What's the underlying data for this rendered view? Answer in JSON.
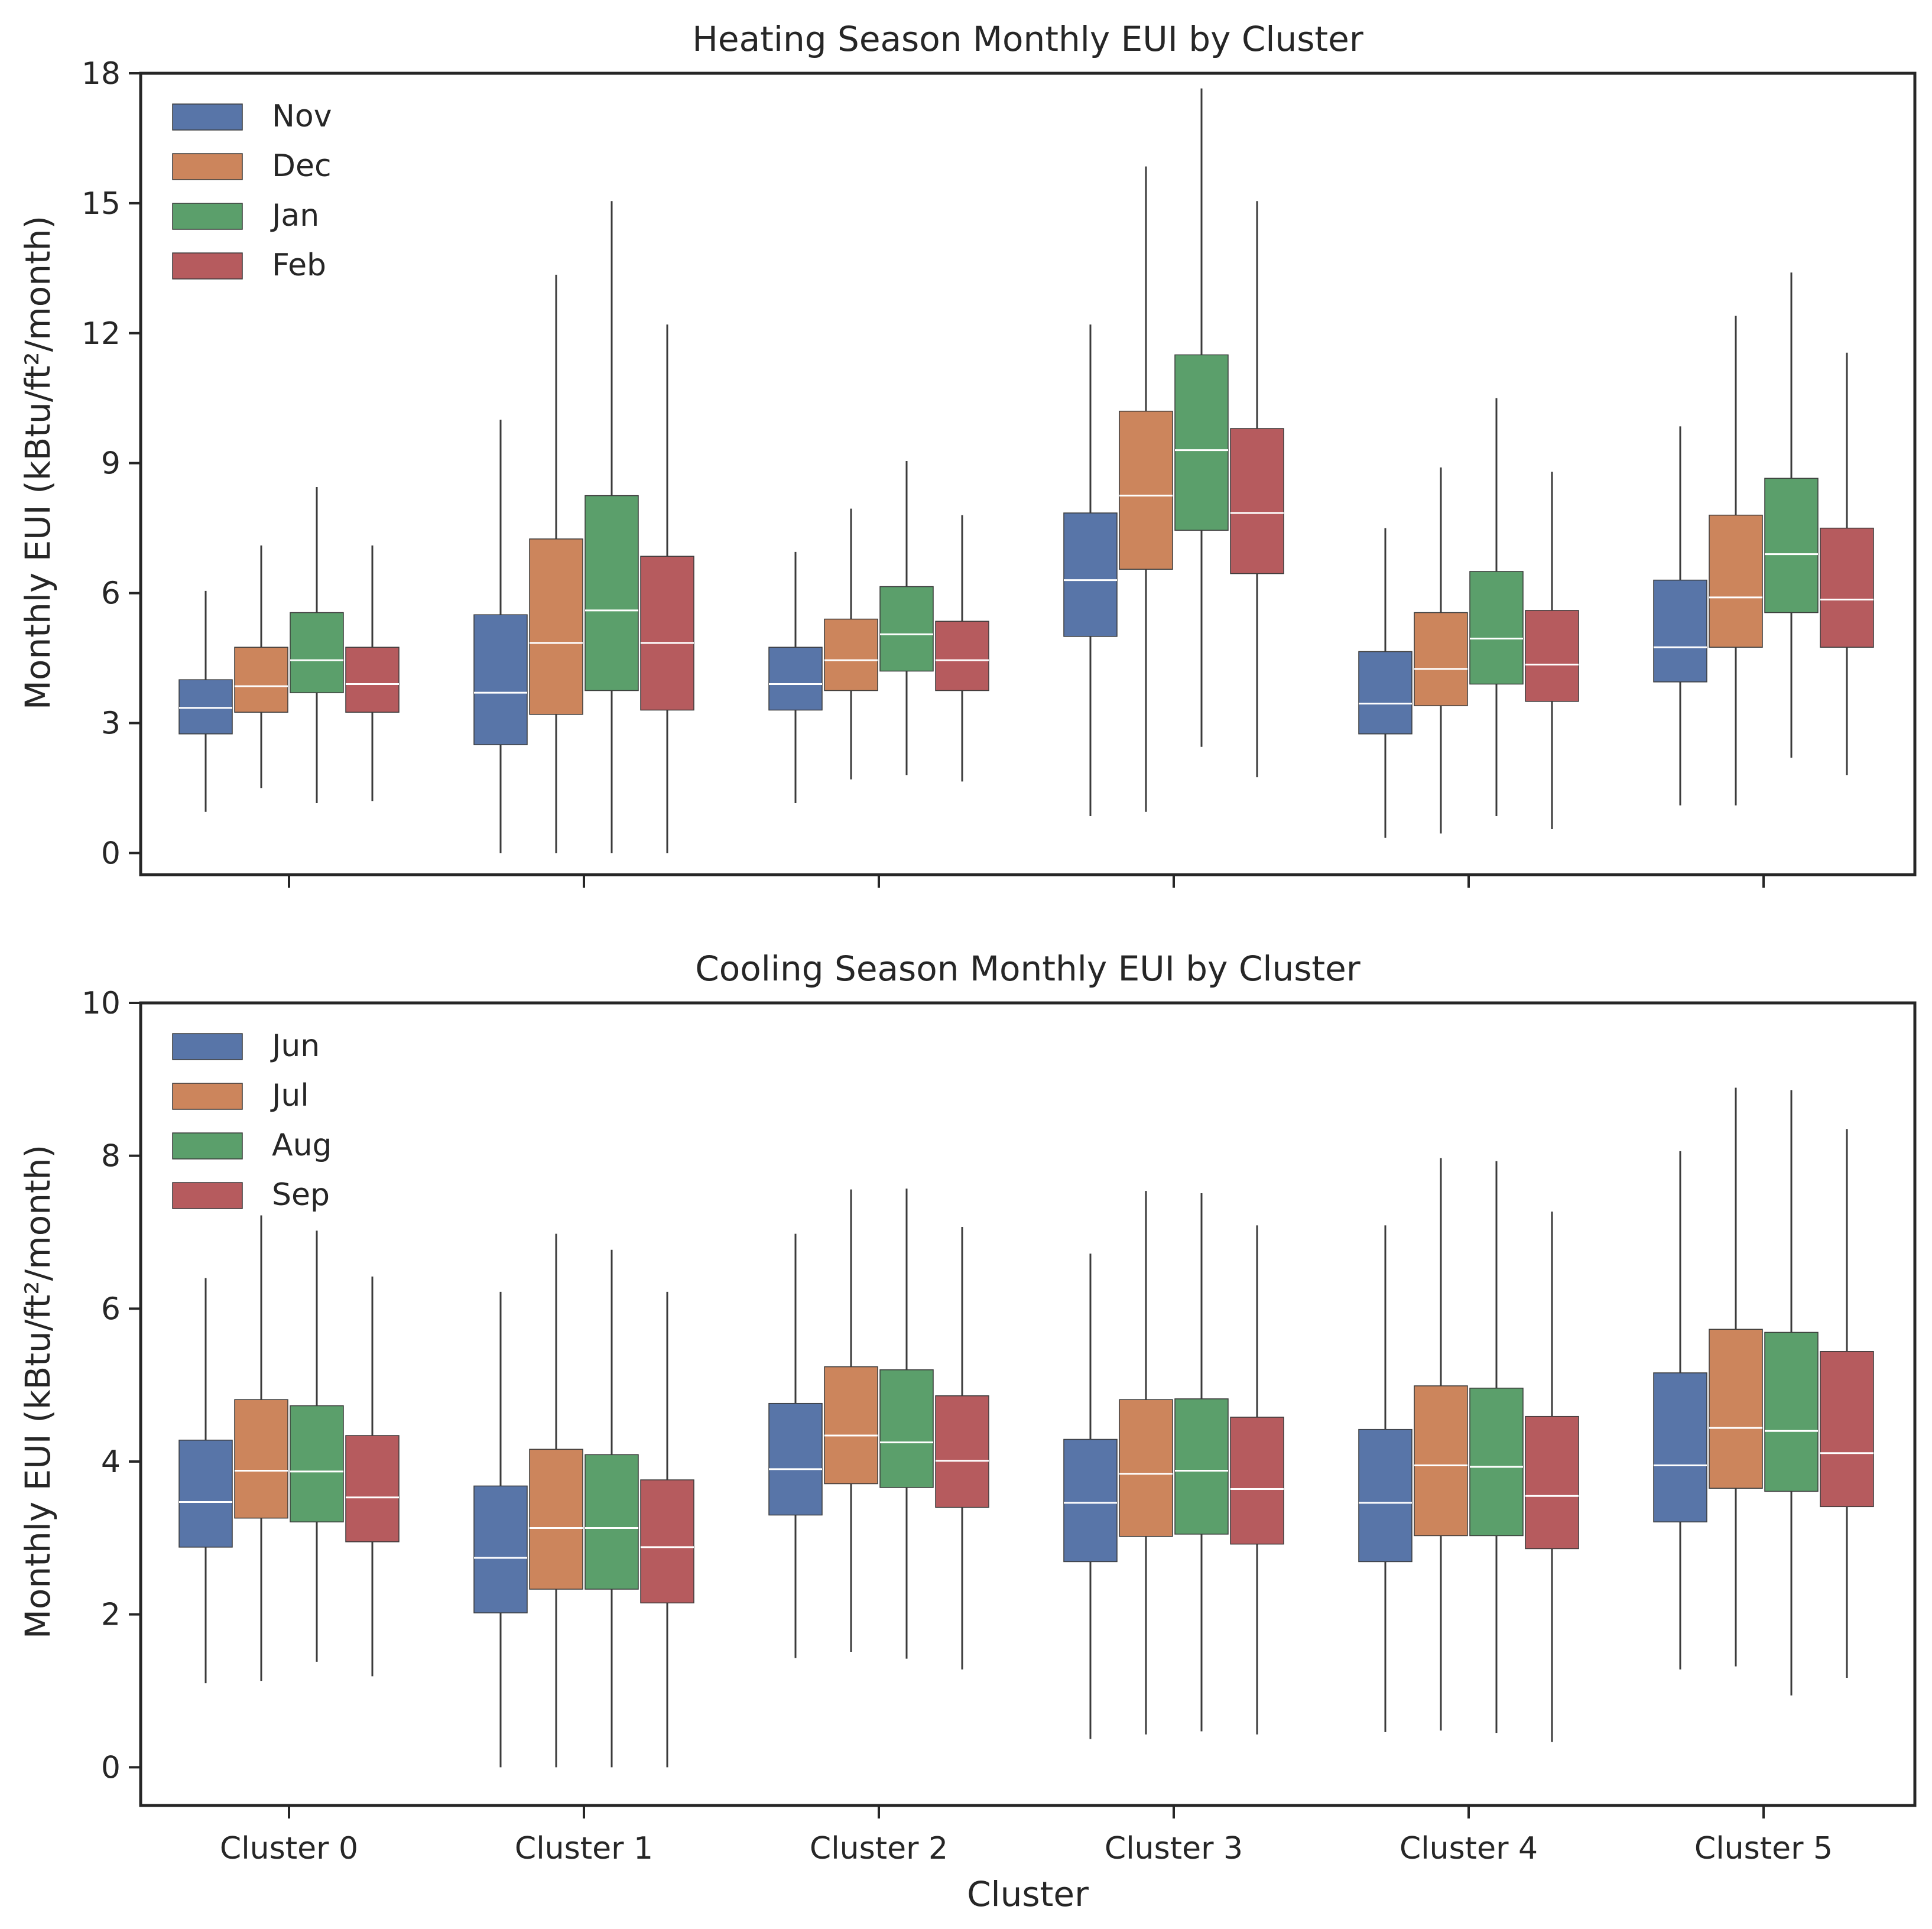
{
  "figure": {
    "shared_xlabel": "Cluster",
    "colors": {
      "c1": "#5875a8",
      "c2": "#cc855c",
      "c3": "#5b9f6b",
      "c4": "#b65b5e",
      "median": "#ffffff",
      "whisker": "#3b3b3b",
      "frame": "#262626"
    }
  },
  "chart_data": [
    {
      "type": "boxplot",
      "title": "Heating Season Monthly EUI by Cluster",
      "xlabel": "",
      "ylabel": "Monthly EUI (kBtu/ft²/month)",
      "ylim": [
        -0.5,
        18
      ],
      "yticks": [
        0,
        3,
        6,
        9,
        12,
        15,
        18
      ],
      "show_xtick_labels": false,
      "legend_loc": "upper left",
      "categories": [
        "Cluster 0",
        "Cluster 1",
        "Cluster 2",
        "Cluster 3",
        "Cluster 4",
        "Cluster 5"
      ],
      "series": [
        {
          "name": "Nov",
          "color": "#5875a8",
          "boxes": [
            {
              "whislo": 0.95,
              "q1": 2.75,
              "med": 3.35,
              "q3": 4.0,
              "whishi": 6.05
            },
            {
              "whislo": 0.0,
              "q1": 2.5,
              "med": 3.7,
              "q3": 5.5,
              "whishi": 10.0
            },
            {
              "whislo": 1.15,
              "q1": 3.3,
              "med": 3.9,
              "q3": 4.75,
              "whishi": 6.95
            },
            {
              "whislo": 0.85,
              "q1": 5.0,
              "med": 6.3,
              "q3": 7.85,
              "whishi": 12.2
            },
            {
              "whislo": 0.35,
              "q1": 2.75,
              "med": 3.45,
              "q3": 4.65,
              "whishi": 7.5
            },
            {
              "whislo": 1.1,
              "q1": 3.95,
              "med": 4.75,
              "q3": 6.3,
              "whishi": 9.85
            }
          ]
        },
        {
          "name": "Dec",
          "color": "#cc855c",
          "boxes": [
            {
              "whislo": 1.5,
              "q1": 3.25,
              "med": 3.85,
              "q3": 4.75,
              "whishi": 7.1
            },
            {
              "whislo": 0.0,
              "q1": 3.2,
              "med": 4.85,
              "q3": 7.25,
              "whishi": 13.35
            },
            {
              "whislo": 1.7,
              "q1": 3.75,
              "med": 4.45,
              "q3": 5.4,
              "whishi": 7.95
            },
            {
              "whislo": 0.95,
              "q1": 6.55,
              "med": 8.25,
              "q3": 10.2,
              "whishi": 15.85
            },
            {
              "whislo": 0.45,
              "q1": 3.4,
              "med": 4.25,
              "q3": 5.55,
              "whishi": 8.9
            },
            {
              "whislo": 1.1,
              "q1": 4.75,
              "med": 5.9,
              "q3": 7.8,
              "whishi": 12.4
            }
          ]
        },
        {
          "name": "Jan",
          "color": "#5b9f6b",
          "boxes": [
            {
              "whislo": 1.15,
              "q1": 3.7,
              "med": 4.45,
              "q3": 5.55,
              "whishi": 8.45
            },
            {
              "whislo": 0.0,
              "q1": 3.75,
              "med": 5.6,
              "q3": 8.25,
              "whishi": 15.05
            },
            {
              "whislo": 1.8,
              "q1": 4.2,
              "med": 5.05,
              "q3": 6.15,
              "whishi": 9.05
            },
            {
              "whislo": 2.45,
              "q1": 7.45,
              "med": 9.3,
              "q3": 11.5,
              "whishi": 17.65
            },
            {
              "whislo": 0.85,
              "q1": 3.9,
              "med": 4.95,
              "q3": 6.5,
              "whishi": 10.5
            },
            {
              "whislo": 2.2,
              "q1": 5.55,
              "med": 6.9,
              "q3": 8.65,
              "whishi": 13.4
            }
          ]
        },
        {
          "name": "Feb",
          "color": "#b65b5e",
          "boxes": [
            {
              "whislo": 1.2,
              "q1": 3.25,
              "med": 3.9,
              "q3": 4.75,
              "whishi": 7.1
            },
            {
              "whislo": 0.0,
              "q1": 3.3,
              "med": 4.85,
              "q3": 6.85,
              "whishi": 12.2
            },
            {
              "whislo": 1.65,
              "q1": 3.75,
              "med": 4.45,
              "q3": 5.35,
              "whishi": 7.8
            },
            {
              "whislo": 1.75,
              "q1": 6.45,
              "med": 7.85,
              "q3": 9.8,
              "whishi": 15.05
            },
            {
              "whislo": 0.55,
              "q1": 3.5,
              "med": 4.35,
              "q3": 5.6,
              "whishi": 8.8
            },
            {
              "whislo": 1.8,
              "q1": 4.75,
              "med": 5.85,
              "q3": 7.5,
              "whishi": 11.55
            }
          ]
        }
      ]
    },
    {
      "type": "boxplot",
      "title": "Cooling Season Monthly EUI by Cluster",
      "xlabel": "Cluster",
      "ylabel": "Monthly EUI (kBtu/ft²/month)",
      "ylim": [
        -0.5,
        10
      ],
      "yticks": [
        0,
        2,
        4,
        6,
        8,
        10
      ],
      "show_xtick_labels": true,
      "legend_loc": "upper left",
      "categories": [
        "Cluster 0",
        "Cluster 1",
        "Cluster 2",
        "Cluster 3",
        "Cluster 4",
        "Cluster 5"
      ],
      "series": [
        {
          "name": "Jun",
          "color": "#5875a8",
          "boxes": [
            {
              "whislo": 1.1,
              "q1": 2.88,
              "med": 3.47,
              "q3": 4.28,
              "whishi": 6.4
            },
            {
              "whislo": 0.0,
              "q1": 2.02,
              "med": 2.74,
              "q3": 3.68,
              "whishi": 6.22
            },
            {
              "whislo": 1.43,
              "q1": 3.3,
              "med": 3.9,
              "q3": 4.76,
              "whishi": 6.98
            },
            {
              "whislo": 0.37,
              "q1": 2.69,
              "med": 3.46,
              "q3": 4.29,
              "whishi": 6.72
            },
            {
              "whislo": 0.46,
              "q1": 2.69,
              "med": 3.46,
              "q3": 4.42,
              "whishi": 7.09
            },
            {
              "whislo": 1.28,
              "q1": 3.21,
              "med": 3.95,
              "q3": 5.16,
              "whishi": 8.06
            }
          ]
        },
        {
          "name": "Jul",
          "color": "#cc855c",
          "boxes": [
            {
              "whislo": 1.13,
              "q1": 3.26,
              "med": 3.88,
              "q3": 4.81,
              "whishi": 7.22
            },
            {
              "whislo": 0.0,
              "q1": 2.33,
              "med": 3.13,
              "q3": 4.16,
              "whishi": 6.98
            },
            {
              "whislo": 1.51,
              "q1": 3.71,
              "med": 4.34,
              "q3": 5.24,
              "whishi": 7.56
            },
            {
              "whislo": 0.43,
              "q1": 3.02,
              "med": 3.84,
              "q3": 4.81,
              "whishi": 7.54
            },
            {
              "whislo": 0.48,
              "q1": 3.03,
              "med": 3.95,
              "q3": 4.99,
              "whishi": 7.97
            },
            {
              "whislo": 1.32,
              "q1": 3.65,
              "med": 4.44,
              "q3": 5.73,
              "whishi": 8.89
            }
          ]
        },
        {
          "name": "Aug",
          "color": "#5b9f6b",
          "boxes": [
            {
              "whislo": 1.38,
              "q1": 3.21,
              "med": 3.87,
              "q3": 4.73,
              "whishi": 7.02
            },
            {
              "whislo": 0.0,
              "q1": 2.33,
              "med": 3.13,
              "q3": 4.09,
              "whishi": 6.77
            },
            {
              "whislo": 1.42,
              "q1": 3.66,
              "med": 4.25,
              "q3": 5.2,
              "whishi": 7.57
            },
            {
              "whislo": 0.47,
              "q1": 3.05,
              "med": 3.88,
              "q3": 4.82,
              "whishi": 7.51
            },
            {
              "whislo": 0.45,
              "q1": 3.03,
              "med": 3.93,
              "q3": 4.96,
              "whishi": 7.93
            },
            {
              "whislo": 0.94,
              "q1": 3.61,
              "med": 4.4,
              "q3": 5.69,
              "whishi": 8.86
            }
          ]
        },
        {
          "name": "Sep",
          "color": "#b65b5e",
          "boxes": [
            {
              "whislo": 1.19,
              "q1": 2.95,
              "med": 3.53,
              "q3": 4.34,
              "whishi": 6.42
            },
            {
              "whislo": 0.0,
              "q1": 2.15,
              "med": 2.88,
              "q3": 3.76,
              "whishi": 6.22
            },
            {
              "whislo": 1.28,
              "q1": 3.4,
              "med": 4.01,
              "q3": 4.86,
              "whishi": 7.07
            },
            {
              "whislo": 0.43,
              "q1": 2.92,
              "med": 3.64,
              "q3": 4.58,
              "whishi": 7.09
            },
            {
              "whislo": 0.33,
              "q1": 2.86,
              "med": 3.55,
              "q3": 4.59,
              "whishi": 7.27
            },
            {
              "whislo": 1.17,
              "q1": 3.41,
              "med": 4.11,
              "q3": 5.44,
              "whishi": 8.35
            }
          ]
        }
      ]
    }
  ]
}
